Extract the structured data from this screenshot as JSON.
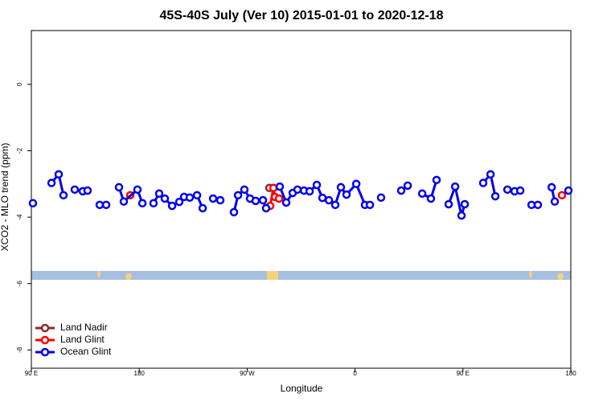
{
  "chart_data": {
    "type": "line",
    "title": "45S-40S July (Ver 10)   2015-01-01 to 2020-12-18",
    "xlabel": "Longitude",
    "ylabel": "XCO2 - MLO trend (ppm)",
    "xlim": [
      90,
      540
    ],
    "xticks": [
      {
        "value": 90,
        "label": "90 E"
      },
      {
        "value": 180,
        "label": "180"
      },
      {
        "value": 270,
        "label": "90 W"
      },
      {
        "value": 360,
        "label": "0"
      },
      {
        "value": 450,
        "label": "90 E"
      },
      {
        "value": 540,
        "label": "180"
      }
    ],
    "ylim": [
      -8.55,
      1.62
    ],
    "yticks": [
      0,
      -2,
      -4,
      -6,
      -8
    ],
    "legend": "bottomleft",
    "series": [
      {
        "name": "Land Nadir",
        "color": "#8b2a2a",
        "x": [
          288.5
        ],
        "values": [
          -3.12
        ]
      },
      {
        "name": "Land Glint",
        "color": "#ff0000",
        "x": [
          172.5,
          null,
          289.2,
          291.9,
          293.2,
          296.6,
          null,
          532.6
        ],
        "values": [
          -3.34,
          null,
          -3.66,
          -3.12,
          -3.39,
          -3.44,
          null,
          -3.34
        ]
      },
      {
        "name": "Ocean Glint",
        "color": "#0000ee",
        "x": [
          91.3,
          null,
          106.8,
          112.8,
          116.8,
          null,
          126.2,
          132.9,
          136.9,
          null,
          147.0,
          152.4,
          null,
          163.1,
          167.1,
          178.5,
          182.6,
          null,
          191.9,
          196.6,
          201.3,
          207.4,
          213.4,
          217.4,
          222.1,
          228.2,
          232.9,
          null,
          241.6,
          247.6,
          null,
          259.0,
          262.4,
          267.7,
          272.4,
          277.1,
          283.2,
          285.8,
          null,
          297.2,
          302.6,
          308.0,
          312.0,
          317.4,
          322.1,
          328.1,
          332.8,
          338.2,
          343.5,
          348.2,
          352.9,
          361.0,
          368.3,
          372.4,
          null,
          381.7,
          null,
          398.5,
          403.9,
          null,
          416.0,
          423.3,
          428.0,
          null,
          438.1,
          443.5,
          448.8,
          451.5,
          null,
          466.9,
          473.0,
          477.0,
          null,
          487.1,
          493.1,
          497.8,
          null,
          507.2,
          512.5,
          null,
          524.0,
          526.6,
          null,
          538.0
        ],
        "values": [
          -3.58,
          null,
          -2.97,
          -2.71,
          -3.34,
          null,
          -3.17,
          -3.22,
          -3.2,
          null,
          -3.63,
          -3.63,
          null,
          -3.1,
          -3.53,
          -3.17,
          -3.58,
          null,
          -3.58,
          -3.29,
          -3.44,
          -3.66,
          -3.54,
          -3.39,
          -3.41,
          -3.34,
          -3.73,
          null,
          -3.44,
          -3.49,
          null,
          -3.85,
          -3.34,
          -3.17,
          -3.44,
          -3.51,
          -3.49,
          -3.73,
          null,
          -3.08,
          -3.56,
          -3.27,
          -3.17,
          -3.2,
          -3.22,
          -3.03,
          -3.42,
          -3.49,
          -3.63,
          -3.1,
          -3.32,
          -3.0,
          -3.63,
          -3.63,
          null,
          -3.41,
          null,
          -3.2,
          -3.05,
          null,
          -3.29,
          -3.44,
          -2.88,
          null,
          -3.61,
          -3.08,
          -3.95,
          -3.61,
          null,
          -2.97,
          -2.71,
          -3.37,
          null,
          -3.17,
          -3.22,
          -3.2,
          null,
          -3.63,
          -3.63,
          null,
          -3.1,
          -3.53,
          null,
          -3.2
        ]
      }
    ]
  }
}
